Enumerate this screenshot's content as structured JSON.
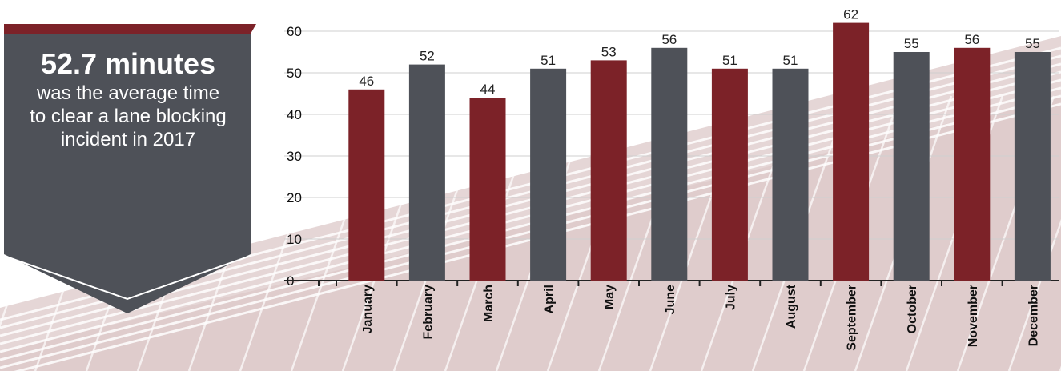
{
  "callout": {
    "value": "52.7 minutes",
    "text": "was the average time to clear a lane blocking incident in 2017"
  },
  "colors": {
    "primary": "#7c2228",
    "secondary": "#4e5158",
    "tread": "#dfcccc",
    "grid": "#cfcfcf"
  },
  "chart_data": {
    "type": "bar",
    "categories": [
      "January",
      "February",
      "March",
      "April",
      "May",
      "June",
      "July",
      "August",
      "September",
      "October",
      "November",
      "December"
    ],
    "values": [
      46,
      52,
      44,
      51,
      53,
      56,
      51,
      51,
      62,
      55,
      56,
      55
    ],
    "bar_colors": [
      "#7c2228",
      "#4e5158",
      "#7c2228",
      "#4e5158",
      "#7c2228",
      "#4e5158",
      "#7c2228",
      "#4e5158",
      "#7c2228",
      "#4e5158",
      "#7c2228",
      "#4e5158"
    ],
    "y_ticks": [
      0,
      10,
      20,
      30,
      40,
      50,
      60
    ],
    "ylim": [
      0,
      65
    ],
    "grid": true,
    "title": "",
    "xlabel": "",
    "ylabel": ""
  }
}
